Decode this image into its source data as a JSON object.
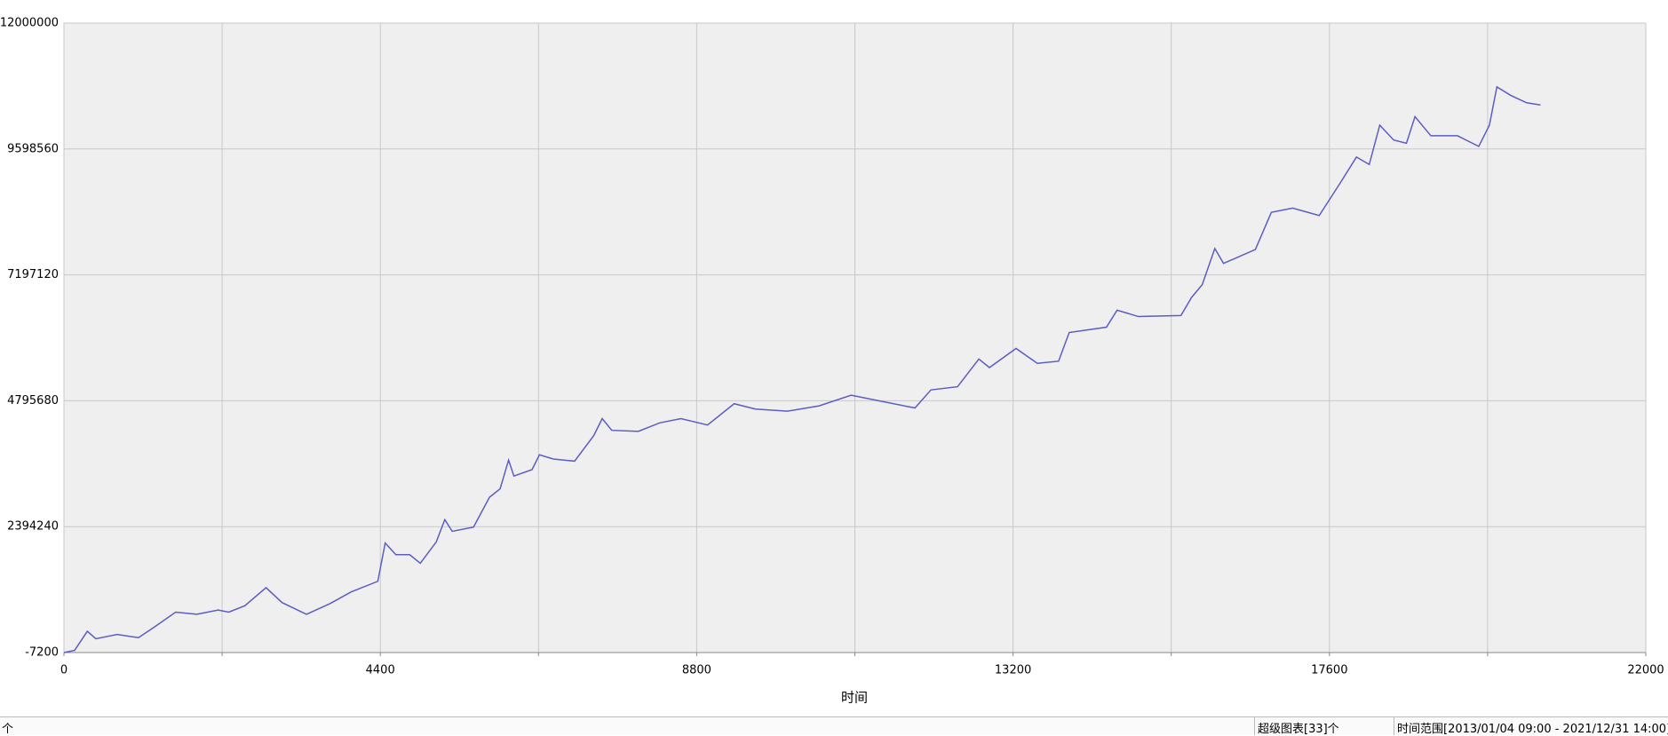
{
  "chart_data": {
    "type": "line",
    "xlabel": "时间",
    "x": [
      0,
      148,
      325,
      444,
      740,
      1036,
      1258,
      1553,
      1849,
      2145,
      2293,
      2515,
      2811,
      3033,
      3373,
      3699,
      3995,
      4365,
      4468,
      4616,
      4808,
      4956,
      5178,
      5297,
      5400,
      5696,
      5918,
      6066,
      6184,
      6258,
      6510,
      6613,
      6806,
      7102,
      7368,
      7486,
      7619,
      7989,
      8285,
      8581,
      8951,
      9321,
      9617,
      10061,
      10504,
      10948,
      11392,
      11836,
      12058,
      12428,
      12724,
      12872,
      13242,
      13537,
      13833,
      13981,
      14499,
      14647,
      14943,
      15535,
      15683,
      15831,
      16006,
      16127,
      16570,
      16792,
      17088,
      17458,
      17754,
      17976,
      18154,
      18300,
      18494,
      18671,
      18790,
      19011,
      19381,
      19677,
      19825,
      19929,
      20121,
      20343,
      20536
    ],
    "series": [
      {
        "color": "#5c5cc4",
        "values": [
          -7200,
          33366,
          398460,
          256480,
          337610,
          276760,
          479590,
          763550,
          722990,
          804120,
          763550,
          885250,
          1230060,
          946100,
          722990,
          925820,
          1148930,
          1351760,
          2081950,
          1858840,
          1858840,
          1696580,
          2102230,
          2528170,
          2305060,
          2386190,
          2954120,
          3116380,
          3664020,
          3359780,
          3481480,
          3765440,
          3684310,
          3643750,
          4130530,
          4455060,
          4231950,
          4211670,
          4373930,
          4455060,
          4333360,
          4739020,
          4637600,
          4597040,
          4698460,
          4901290,
          4779590,
          4657890,
          5002700,
          5063550,
          5590910,
          5428650,
          5793740,
          5509780,
          5550350,
          6097990,
          6199400,
          6523930,
          6402230,
          6422520,
          6767330,
          7010720,
          7700340,
          7416380,
          7680060,
          8389960,
          8471090,
          8329110,
          8957900,
          9444690,
          9302710,
          10053180,
          9769220,
          9708360,
          10215440,
          9850350,
          9850350,
          9647520,
          10053180,
          10783370,
          10621110,
          10479130,
          10438570
        ]
      }
    ],
    "xlim": [
      0,
      22000
    ],
    "xticks": [
      0,
      4400,
      8800,
      13200,
      17600,
      22000
    ],
    "xminorticks": [
      2200,
      6600,
      11000,
      15400,
      19800
    ],
    "ylim": [
      -7200,
      12000000
    ],
    "yticks": [
      -7200,
      2394240,
      4795680,
      7197120,
      9598560,
      12000000
    ],
    "grid": true
  },
  "status": {
    "left": "个",
    "charts": "超级图表[33]个",
    "range": "时间范围[2013/01/04 09:00 - 2021/12/31 14:00]"
  }
}
